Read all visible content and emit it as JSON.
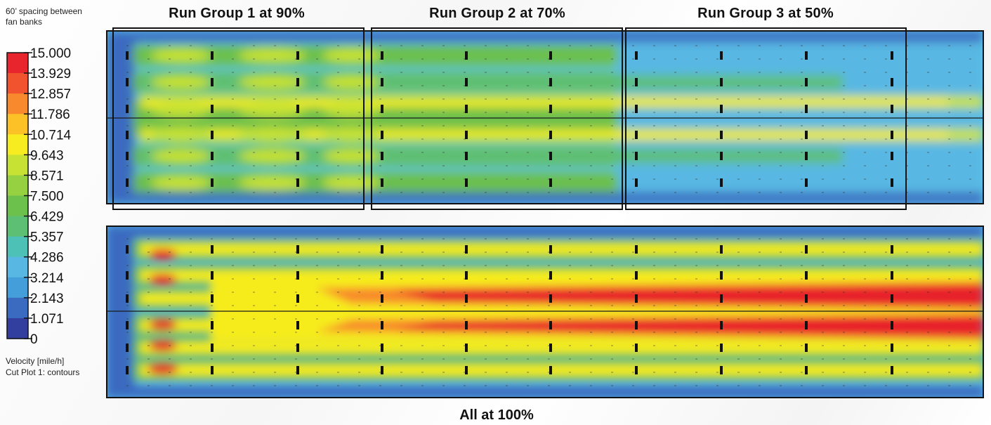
{
  "header": {
    "spacing_note_line1": "60’ spacing between",
    "spacing_note_line2": "fan banks"
  },
  "legend": {
    "quantity": "Velocity [mile/h]",
    "plot_name": "Cut Plot 1: contours"
  },
  "chart_data": {
    "type": "heatmap",
    "title": "",
    "colorbar": {
      "min": 0,
      "max": 15,
      "tick_labels": [
        "15.000",
        "13.929",
        "12.857",
        "11.786",
        "10.714",
        "9.643",
        "8.571",
        "7.500",
        "6.429",
        "5.357",
        "4.286",
        "3.214",
        "2.143",
        "1.071",
        "0"
      ],
      "colors": [
        "#e8242c",
        "#f0532e",
        "#f8892c",
        "#fbc126",
        "#f6ec1f",
        "#c8e233",
        "#96d142",
        "#6cc04c",
        "#5dbf73",
        "#4ec1b7",
        "#58b8e3",
        "#449ed9",
        "#3b6bc0",
        "#333f9f"
      ]
    },
    "panels": [
      {
        "name": "top",
        "run_groups": [
          {
            "label": "Run Group 1 at 90%",
            "fan_power_percent": 90
          },
          {
            "label": "Run Group 2 at 70%",
            "fan_power_percent": 70
          },
          {
            "label": "Run Group 3 at 50%",
            "fan_power_percent": 50
          }
        ],
        "fan_banks": 10,
        "fan_bank_spacing_ft": 60
      },
      {
        "name": "bottom",
        "label": "All at 100%",
        "fan_power_percent": 100,
        "fan_banks": 10,
        "fan_bank_spacing_ft": 60
      }
    ]
  }
}
